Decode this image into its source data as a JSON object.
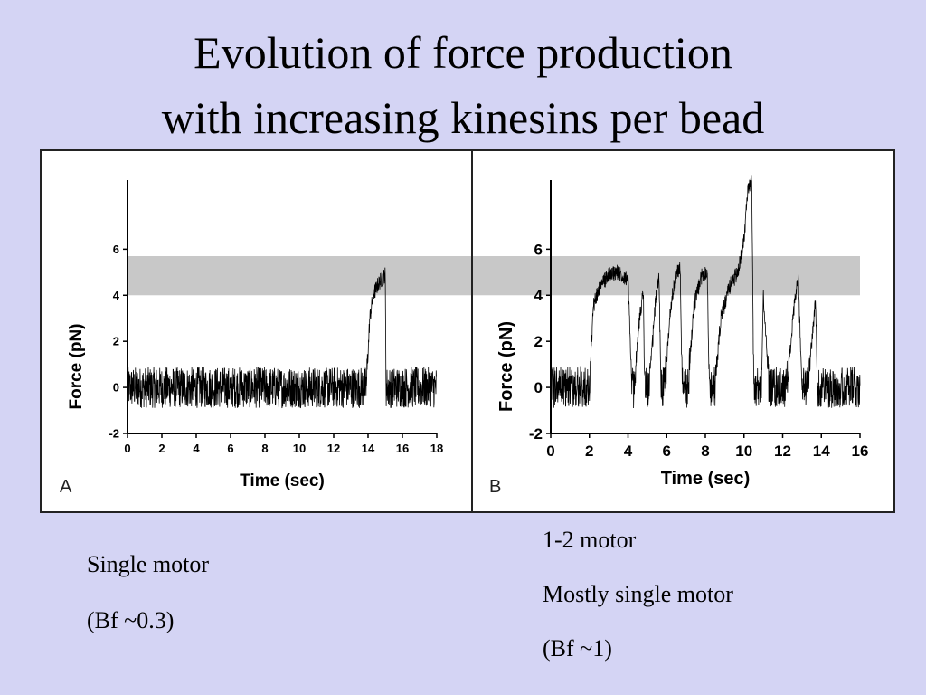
{
  "slide": {
    "title_line1": "Evolution of force production",
    "title_line2": "with increasing kinesins per bead"
  },
  "captions": {
    "left": [
      "Single motor",
      "(Bf ~0.3)"
    ],
    "right": [
      "1-2 motor",
      "Mostly single motor",
      "(Bf ~1)"
    ]
  },
  "highlight_band": {
    "from": 4,
    "to": 5.7,
    "color": "#c8c8c8"
  },
  "chart_data": [
    {
      "type": "line",
      "panel": "A",
      "xlabel": "Time (sec)",
      "ylabel": "Force (pN)",
      "xlim": [
        0,
        18
      ],
      "ylim": [
        -2,
        9
      ],
      "xticks": [
        0,
        2,
        4,
        6,
        8,
        10,
        12,
        14,
        16,
        18
      ],
      "yticks": [
        -2,
        0,
        2,
        4,
        6
      ],
      "trace": {
        "x": [
          0,
          13.9,
          14.1,
          14.3,
          14.6,
          15.0,
          15.05,
          18
        ],
        "y": [
          0,
          0,
          3.0,
          4.0,
          4.5,
          4.9,
          0,
          0
        ]
      }
    },
    {
      "type": "line",
      "panel": "B",
      "xlabel": "Time (sec)",
      "ylabel": "Force (pN)",
      "xlim": [
        0,
        16
      ],
      "ylim": [
        -2,
        9
      ],
      "xticks": [
        0,
        2,
        4,
        6,
        8,
        10,
        12,
        14,
        16
      ],
      "yticks": [
        -2,
        0,
        2,
        4,
        6
      ],
      "trace": {
        "x": [
          0,
          2.0,
          2.2,
          2.5,
          3.0,
          3.5,
          4.0,
          4.2,
          4.3,
          4.6,
          4.8,
          4.85,
          5.1,
          5.4,
          5.6,
          5.7,
          5.9,
          6.2,
          6.5,
          6.7,
          6.8,
          7.1,
          7.4,
          7.8,
          8.1,
          8.2,
          8.5,
          8.8,
          9.3,
          9.7,
          10.0,
          10.2,
          10.4,
          10.5,
          10.9,
          11.0,
          11.3,
          12.2,
          12.6,
          12.8,
          13.0,
          13.3,
          13.7,
          13.8,
          16
        ],
        "y": [
          0,
          0,
          3.5,
          4.3,
          4.9,
          5.0,
          4.7,
          0,
          0,
          3.0,
          4.3,
          0,
          0,
          3.5,
          5.0,
          0,
          0,
          3.5,
          5.0,
          5.1,
          0,
          0,
          3.5,
          4.8,
          5.1,
          0,
          0,
          3.0,
          4.5,
          5.0,
          6.5,
          8.5,
          9.0,
          0,
          0,
          4.0,
          0,
          0,
          3.5,
          4.8,
          0,
          0,
          3.8,
          0,
          0
        ]
      }
    }
  ]
}
